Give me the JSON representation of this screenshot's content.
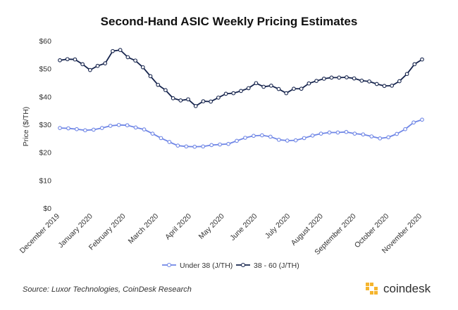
{
  "chart_data": {
    "type": "line",
    "title": "Second-Hand ASIC Weekly Pricing Estimates",
    "ylabel": "Price ($/TH)",
    "xlabel": "",
    "ylim": [
      0,
      60
    ],
    "yticks": [
      "$0",
      "$10",
      "$20",
      "$30",
      "$40",
      "$50",
      "$60"
    ],
    "x_month_labels": [
      "December 2019",
      "January 2020",
      "February 2020",
      "March 2020",
      "April 2020",
      "May 2020",
      "June 2020",
      "July 2020",
      "August 2020",
      "September 2020",
      "October 2020",
      "November 2020"
    ],
    "grid": false,
    "legend_position": "bottom",
    "series": [
      {
        "name": "Under 38 (J/TH)",
        "color": "#6f86e6",
        "values": [
          28.7,
          28.6,
          28.3,
          27.9,
          28.1,
          28.7,
          29.5,
          29.8,
          29.7,
          28.9,
          28.2,
          26.7,
          25.1,
          23.7,
          22.4,
          22.1,
          22.0,
          22.1,
          22.6,
          22.8,
          23.0,
          24.1,
          25.2,
          25.9,
          26.1,
          25.6,
          24.5,
          24.2,
          24.3,
          25.1,
          26.0,
          26.7,
          27.1,
          27.1,
          27.3,
          26.7,
          26.4,
          25.7,
          25.0,
          25.4,
          26.6,
          28.3,
          30.7,
          31.7
        ]
      },
      {
        "name": "38 - 60 (J/TH)",
        "color": "#16244d",
        "values": [
          53.0,
          53.4,
          53.3,
          51.6,
          49.5,
          51.0,
          51.9,
          56.3,
          56.7,
          54.1,
          52.9,
          50.5,
          47.3,
          44.2,
          42.3,
          39.4,
          38.6,
          39.0,
          36.6,
          38.3,
          38.2,
          39.6,
          41.0,
          41.2,
          42.0,
          43.0,
          44.8,
          43.5,
          43.9,
          42.7,
          41.2,
          42.8,
          42.8,
          44.7,
          45.6,
          46.4,
          46.8,
          46.8,
          46.9,
          46.5,
          45.7,
          45.4,
          44.5,
          43.8,
          43.9,
          45.5,
          48.1,
          51.6,
          53.3
        ]
      }
    ]
  },
  "footer": {
    "source": "Source: Luxor Technologies, CoinDesk Research",
    "brand": "coindesk"
  }
}
